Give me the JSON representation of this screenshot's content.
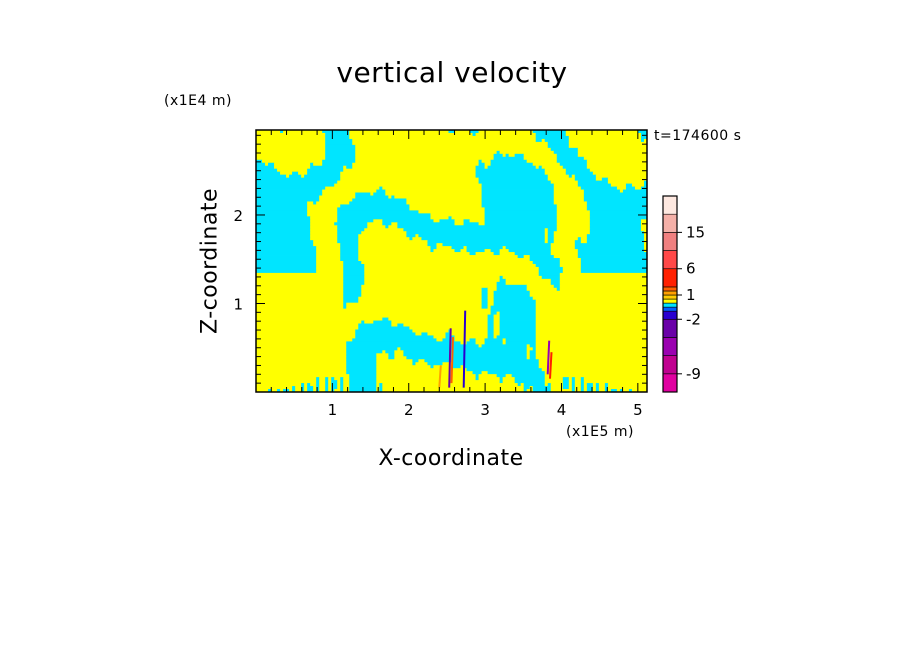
{
  "chart_data": {
    "type": "heatmap",
    "title": "vertical velocity",
    "xlabel": "X-coordinate",
    "ylabel": "Z-coordinate",
    "x_multiplier": "(x1E5 m)",
    "y_multiplier": "(x1E4 m)",
    "time_label": "t=174600 s",
    "x_range": [
      0,
      5.12
    ],
    "y_range": [
      0,
      2.96
    ],
    "x_ticks": [
      1,
      2,
      3,
      4,
      5
    ],
    "y_ticks": [
      1,
      2
    ],
    "colorbar": {
      "levels": [
        "-12",
        "-9",
        "-6",
        "-4",
        "-2",
        "-1",
        "-0.5",
        "0",
        "0.5",
        "1",
        "2",
        "4",
        "6",
        "10",
        "15",
        "20",
        "25"
      ],
      "labeled_ticks": [
        {
          "level_index": 1,
          "label": "-9"
        },
        {
          "level_index": 4,
          "label": "-2"
        },
        {
          "level_index": 9,
          "label": "1"
        },
        {
          "level_index": 12,
          "label": "6"
        },
        {
          "level_index": 14,
          "label": "15"
        }
      ],
      "colors": [
        "#e000a0",
        "#c00090",
        "#9a00b0",
        "#6a00a8",
        "#2a00d0",
        "#0060ff",
        "#00e5ff",
        "#ffff00",
        "#ffcc00",
        "#ffa000",
        "#ff6000",
        "#ff2000",
        "#ff4848",
        "#f08080",
        "#f4b0a8",
        "#fde8e0"
      ]
    },
    "field_colors": {
      "negative": "#00e5ff",
      "positive": "#ffff00"
    }
  }
}
